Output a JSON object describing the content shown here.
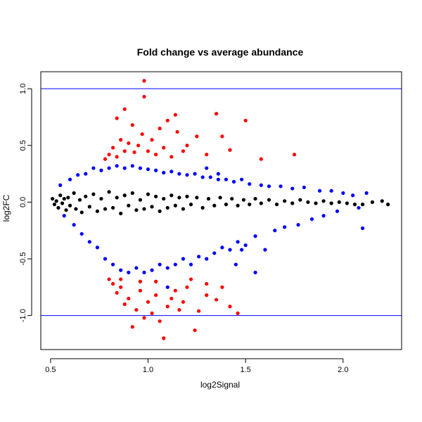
{
  "chart_data": {
    "type": "scatter",
    "title": "Fold change vs average abundance",
    "xlabel": "log2Signal",
    "ylabel": "log2FC",
    "xlim": [
      0.45,
      2.3
    ],
    "ylim": [
      -1.3,
      1.15
    ],
    "xticks": [
      {
        "value": 0.5,
        "label": "0.5"
      },
      {
        "value": 1.0,
        "label": "1.0"
      },
      {
        "value": 1.5,
        "label": "1.5"
      },
      {
        "value": 2.0,
        "label": "2.0"
      }
    ],
    "yticks": [
      {
        "value": -1.0,
        "label": "-1.0"
      },
      {
        "value": -0.5,
        "label": "-0.5"
      },
      {
        "value": 0.0,
        "label": "0.0"
      },
      {
        "value": 0.5,
        "label": "0.5"
      },
      {
        "value": 1.0,
        "label": "1.0"
      }
    ],
    "hlines": [
      {
        "y": 1.0,
        "color": "#0000ff"
      },
      {
        "y": -1.0,
        "color": "#0000ff"
      }
    ],
    "grid": false,
    "legend": "none",
    "colors": {
      "black": "#000000",
      "blue": "#0000ff",
      "red": "#ff0000",
      "axis": "#000000",
      "background": "#ffffff"
    },
    "series": [
      {
        "color": "black",
        "points": [
          [
            0.51,
            0.03
          ],
          [
            0.52,
            -0.02
          ],
          [
            0.53,
            0.01
          ],
          [
            0.54,
            -0.05
          ],
          [
            0.55,
            0.06
          ],
          [
            0.56,
            -0.01
          ],
          [
            0.57,
            0.03
          ],
          [
            0.58,
            -0.07
          ],
          [
            0.59,
            0.04
          ],
          [
            0.6,
            -0.03
          ],
          [
            0.62,
            0.08
          ],
          [
            0.63,
            -0.06
          ],
          [
            0.65,
            0.02
          ],
          [
            0.66,
            -0.09
          ],
          [
            0.68,
            0.05
          ],
          [
            0.7,
            -0.04
          ],
          [
            0.72,
            0.07
          ],
          [
            0.74,
            -0.08
          ],
          [
            0.76,
            0.03
          ],
          [
            0.78,
            -0.06
          ],
          [
            0.8,
            0.09
          ],
          [
            0.82,
            -0.05
          ],
          [
            0.84,
            0.04
          ],
          [
            0.86,
            -0.1
          ],
          [
            0.88,
            0.06
          ],
          [
            0.9,
            -0.03
          ],
          [
            0.92,
            0.08
          ],
          [
            0.94,
            -0.07
          ],
          [
            0.96,
            0.02
          ],
          [
            0.98,
            -0.06
          ],
          [
            1.0,
            0.07
          ],
          [
            1.02,
            -0.04
          ],
          [
            1.04,
            0.05
          ],
          [
            1.06,
            -0.08
          ],
          [
            1.08,
            0.03
          ],
          [
            1.1,
            -0.05
          ],
          [
            1.12,
            0.06
          ],
          [
            1.14,
            -0.03
          ],
          [
            1.16,
            0.04
          ],
          [
            1.18,
            -0.06
          ],
          [
            1.2,
            0.05
          ],
          [
            1.22,
            -0.02
          ],
          [
            1.25,
            0.04
          ],
          [
            1.28,
            -0.05
          ],
          [
            1.31,
            0.03
          ],
          [
            1.34,
            -0.03
          ],
          [
            1.37,
            0.04
          ],
          [
            1.4,
            -0.02
          ],
          [
            1.43,
            0.03
          ],
          [
            1.46,
            -0.03
          ],
          [
            1.49,
            0.02
          ],
          [
            1.52,
            -0.02
          ],
          [
            1.55,
            0.03
          ],
          [
            1.58,
            -0.01
          ],
          [
            1.62,
            0.02
          ],
          [
            1.66,
            -0.02
          ],
          [
            1.7,
            0.01
          ],
          [
            1.74,
            -0.01
          ],
          [
            1.78,
            0.02
          ],
          [
            1.82,
            0.0
          ],
          [
            1.86,
            -0.01
          ],
          [
            1.9,
            0.01
          ],
          [
            1.94,
            -0.01
          ],
          [
            1.98,
            0.0
          ],
          [
            2.02,
            -0.01
          ],
          [
            2.06,
            -0.02
          ],
          [
            2.1,
            -0.02
          ],
          [
            2.15,
            0.0
          ],
          [
            2.2,
            0.01
          ],
          [
            2.23,
            -0.02
          ]
        ]
      },
      {
        "color": "blue",
        "points": [
          [
            0.55,
            0.15
          ],
          [
            0.57,
            -0.12
          ],
          [
            0.6,
            0.2
          ],
          [
            0.62,
            -0.2
          ],
          [
            0.64,
            0.24
          ],
          [
            0.66,
            -0.28
          ],
          [
            0.68,
            0.25
          ],
          [
            0.7,
            -0.35
          ],
          [
            0.72,
            0.3
          ],
          [
            0.74,
            -0.4
          ],
          [
            0.76,
            0.28
          ],
          [
            0.78,
            -0.5
          ],
          [
            0.8,
            0.3
          ],
          [
            0.82,
            -0.55
          ],
          [
            0.84,
            0.32
          ],
          [
            0.86,
            -0.6
          ],
          [
            0.88,
            0.3
          ],
          [
            0.9,
            -0.62
          ],
          [
            0.92,
            0.32
          ],
          [
            0.94,
            -0.58
          ],
          [
            0.96,
            0.3
          ],
          [
            0.98,
            -0.62
          ],
          [
            1.0,
            0.29
          ],
          [
            1.02,
            -0.6
          ],
          [
            1.04,
            0.28
          ],
          [
            1.06,
            -0.55
          ],
          [
            1.08,
            0.26
          ],
          [
            1.1,
            -0.58
          ],
          [
            1.12,
            0.27
          ],
          [
            1.14,
            -0.55
          ],
          [
            1.16,
            0.25
          ],
          [
            1.18,
            -0.5
          ],
          [
            1.2,
            0.24
          ],
          [
            1.22,
            -0.55
          ],
          [
            1.24,
            0.25
          ],
          [
            1.26,
            -0.48
          ],
          [
            1.28,
            0.22
          ],
          [
            1.3,
            -0.5
          ],
          [
            1.32,
            0.22
          ],
          [
            1.34,
            -0.45
          ],
          [
            1.36,
            0.2
          ],
          [
            1.38,
            -0.4
          ],
          [
            1.4,
            0.2
          ],
          [
            1.42,
            -0.42
          ],
          [
            1.44,
            0.18
          ],
          [
            1.46,
            -0.35
          ],
          [
            1.48,
            0.2
          ],
          [
            1.5,
            -0.38
          ],
          [
            1.52,
            0.16
          ],
          [
            1.55,
            -0.3
          ],
          [
            1.58,
            0.15
          ],
          [
            1.6,
            -0.42
          ],
          [
            1.62,
            0.14
          ],
          [
            1.65,
            -0.25
          ],
          [
            1.68,
            0.14
          ],
          [
            1.7,
            -0.22
          ],
          [
            1.74,
            0.12
          ],
          [
            1.77,
            -0.2
          ],
          [
            1.8,
            0.13
          ],
          [
            1.84,
            -0.15
          ],
          [
            1.88,
            0.1
          ],
          [
            1.9,
            -0.12
          ],
          [
            1.94,
            0.1
          ],
          [
            1.97,
            -0.08
          ],
          [
            2.0,
            0.08
          ],
          [
            2.05,
            0.06
          ],
          [
            2.08,
            -0.05
          ],
          [
            2.1,
            -0.23
          ],
          [
            2.12,
            0.08
          ],
          [
            1.1,
            -0.75
          ],
          [
            1.45,
            -0.55
          ],
          [
            1.55,
            -0.62
          ],
          [
            1.48,
            -0.42
          ],
          [
            1.3,
            0.3
          ],
          [
            1.36,
            0.25
          ]
        ]
      },
      {
        "color": "red",
        "points": [
          [
            0.78,
            0.38
          ],
          [
            0.8,
            0.42
          ],
          [
            0.82,
            0.48
          ],
          [
            0.84,
            0.4
          ],
          [
            0.86,
            0.55
          ],
          [
            0.88,
            0.45
          ],
          [
            0.9,
            0.52
          ],
          [
            0.93,
            0.44
          ],
          [
            0.95,
            0.5
          ],
          [
            0.97,
            0.6
          ],
          [
            0.98,
            1.07
          ],
          [
            0.98,
            0.93
          ],
          [
            1.0,
            0.45
          ],
          [
            1.02,
            0.55
          ],
          [
            1.04,
            0.42
          ],
          [
            1.06,
            0.65
          ],
          [
            1.08,
            0.48
          ],
          [
            1.1,
            0.72
          ],
          [
            1.12,
            0.4
          ],
          [
            1.15,
            0.62
          ],
          [
            1.18,
            0.45
          ],
          [
            1.2,
            0.5
          ],
          [
            1.25,
            0.58
          ],
          [
            1.3,
            0.42
          ],
          [
            1.35,
            0.78
          ],
          [
            1.38,
            0.58
          ],
          [
            1.42,
            0.46
          ],
          [
            1.5,
            0.72
          ],
          [
            1.58,
            0.38
          ],
          [
            1.75,
            0.42
          ],
          [
            0.84,
            0.74
          ],
          [
            0.88,
            0.82
          ],
          [
            0.92,
            0.68
          ],
          [
            1.14,
            0.77
          ],
          [
            0.8,
            -0.68
          ],
          [
            0.82,
            -0.72
          ],
          [
            0.84,
            -0.8
          ],
          [
            0.86,
            -0.75
          ],
          [
            0.88,
            -0.9
          ],
          [
            0.9,
            -0.85
          ],
          [
            0.92,
            -1.1
          ],
          [
            0.94,
            -0.95
          ],
          [
            0.96,
            -0.78
          ],
          [
            0.98,
            -1.02
          ],
          [
            1.0,
            -0.88
          ],
          [
            1.02,
            -0.98
          ],
          [
            1.04,
            -0.82
          ],
          [
            1.06,
            -1.05
          ],
          [
            1.08,
            -1.2
          ],
          [
            1.1,
            -0.92
          ],
          [
            1.12,
            -0.85
          ],
          [
            1.14,
            -0.78
          ],
          [
            1.16,
            -0.95
          ],
          [
            1.18,
            -0.88
          ],
          [
            1.2,
            -0.75
          ],
          [
            1.24,
            -1.13
          ],
          [
            1.26,
            -0.96
          ],
          [
            1.3,
            -0.82
          ],
          [
            1.35,
            -0.86
          ],
          [
            1.38,
            -0.75
          ],
          [
            1.42,
            -0.92
          ],
          [
            1.46,
            -0.98
          ],
          [
            1.3,
            -0.72
          ],
          [
            1.22,
            -0.68
          ],
          [
            0.86,
            -0.68
          ],
          [
            0.96,
            -0.7
          ],
          [
            1.04,
            -0.7
          ]
        ]
      }
    ]
  }
}
